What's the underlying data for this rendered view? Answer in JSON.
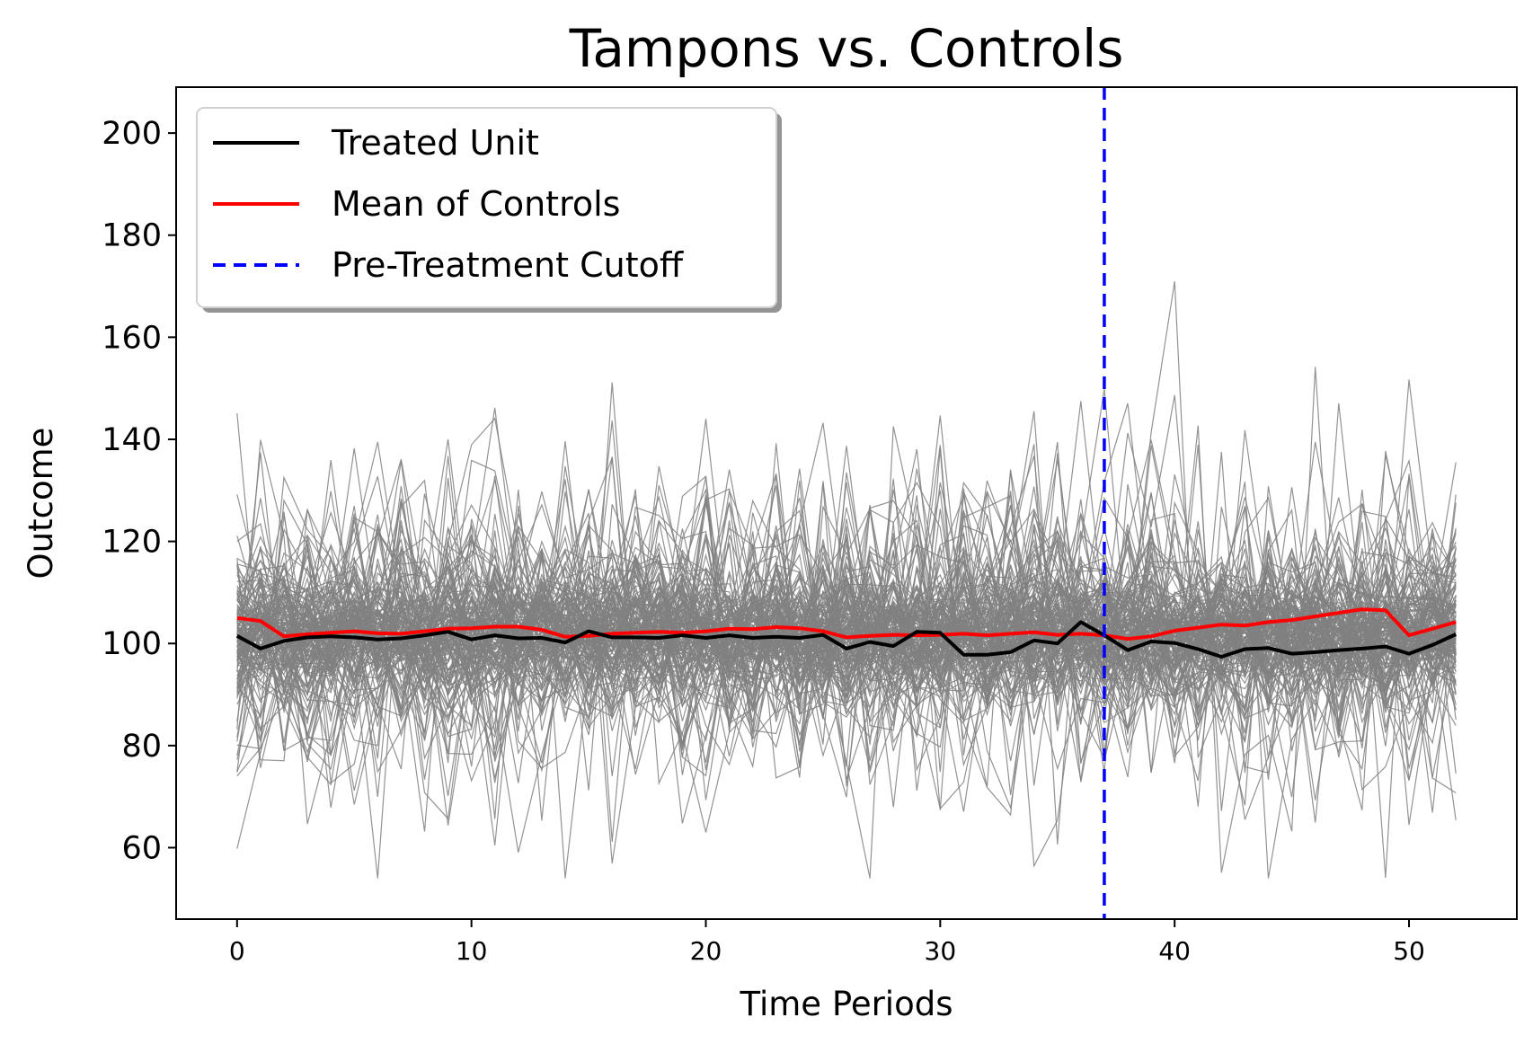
{
  "chart_data": {
    "type": "line",
    "title": "Tampons vs. Controls",
    "xlabel": "Time Periods",
    "ylabel": "Outcome",
    "xlim": [
      -2.6,
      54.6
    ],
    "ylim": [
      46,
      209
    ],
    "xticks": [
      0,
      10,
      20,
      30,
      40,
      50
    ],
    "yticks": [
      60,
      80,
      100,
      120,
      140,
      160,
      180,
      200
    ],
    "grid": false,
    "legend_position": "top-left",
    "x": [
      0,
      1,
      2,
      3,
      4,
      5,
      6,
      7,
      8,
      9,
      10,
      11,
      12,
      13,
      14,
      15,
      16,
      17,
      18,
      19,
      20,
      21,
      22,
      23,
      24,
      25,
      26,
      27,
      28,
      29,
      30,
      31,
      32,
      33,
      34,
      35,
      36,
      37,
      38,
      39,
      40,
      41,
      42,
      43,
      44,
      45,
      46,
      47,
      48,
      49,
      50,
      51,
      52
    ],
    "series": [
      {
        "name": "Treated Unit",
        "color": "#000000",
        "values": [
          101.5,
          99,
          100.5,
          101.2,
          101.4,
          101.2,
          100.8,
          101.0,
          101.6,
          102.3,
          100.8,
          101.6,
          101.0,
          101.1,
          100.2,
          102.4,
          101.2,
          101.2,
          101.1,
          101.6,
          101.1,
          101.6,
          101.1,
          101.3,
          101.1,
          101.7,
          99.0,
          100.3,
          99.5,
          102.3,
          102.1,
          97.8,
          97.8,
          98.3,
          100.6,
          100.0,
          104.2,
          101.6,
          98.7,
          100.4,
          100.1,
          98.9,
          97.4,
          98.9,
          99.1,
          98.0,
          98.3,
          98.7,
          99.0,
          99.4,
          98.0,
          99.7,
          101.8
        ]
      },
      {
        "name": "Mean of Controls",
        "color": "#ff0000",
        "values": [
          105.0,
          104.4,
          101.4,
          101.8,
          102.1,
          102.4,
          102.0,
          101.9,
          102.4,
          102.9,
          103.0,
          103.3,
          103.3,
          102.7,
          101.3,
          101.5,
          101.9,
          102.1,
          102.3,
          102.1,
          102.4,
          102.9,
          102.8,
          103.2,
          103.0,
          102.4,
          101.2,
          101.5,
          101.7,
          101.6,
          101.7,
          101.9,
          101.6,
          101.9,
          102.2,
          101.7,
          101.9,
          101.6,
          100.9,
          101.4,
          102.5,
          103.1,
          103.7,
          103.5,
          104.2,
          104.6,
          105.3,
          106.0,
          106.7,
          106.5,
          101.6,
          102.9,
          104.2
        ]
      }
    ],
    "cutoff": {
      "name": "Pre-Treatment Cutoff",
      "x": 37,
      "color": "#0000ff",
      "style": "dashed"
    },
    "controls": {
      "color": "#808080",
      "count": 150,
      "center": 102,
      "typical_min": 54,
      "typical_max": 183
    }
  }
}
